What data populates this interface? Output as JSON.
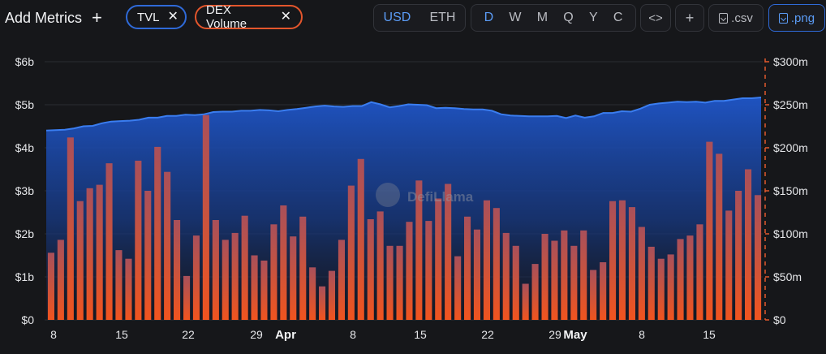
{
  "toolbar": {
    "add_metrics": "Add Metrics",
    "add_metrics_plus": "+",
    "metric_pills": [
      "TVL",
      "DEX Volume"
    ],
    "currency": [
      "USD",
      "ETH"
    ],
    "currency_selected": "USD",
    "granularity": [
      "D",
      "W",
      "M",
      "Q",
      "Y",
      "C"
    ],
    "granularity_selected": "D",
    "embed_icon": "<>",
    "add_plus": "+",
    "csv_label": ".csv",
    "png_label": ".png"
  },
  "colors": {
    "tvl": "#2563e0",
    "dex_volume": "#e0582c",
    "background": "#16171a"
  },
  "chart_data": {
    "type": "bar",
    "watermark": "DefiLlama",
    "x_tick_labels": [
      "8",
      "15",
      "22",
      "29",
      "Apr",
      "8",
      "15",
      "22",
      "29",
      "May",
      "8",
      "15"
    ],
    "left_axis": {
      "ticks": [
        "$0",
        "$1b",
        "$2b",
        "$3b",
        "$4b",
        "$5b",
        "$6b"
      ],
      "range": [
        0,
        6000000000
      ]
    },
    "right_axis": {
      "ticks": [
        "$0",
        "$50m",
        "$100m",
        "$150m",
        "$200m",
        "$250m",
        "$300m"
      ],
      "range": [
        0,
        300000000
      ]
    },
    "grid": "horizontal",
    "series": [
      {
        "name": "TVL",
        "type": "area",
        "axis": "left",
        "values": [
          4.4,
          4.41,
          4.42,
          4.45,
          4.5,
          4.51,
          4.57,
          4.61,
          4.62,
          4.63,
          4.65,
          4.7,
          4.7,
          4.74,
          4.74,
          4.77,
          4.76,
          4.78,
          4.83,
          4.84,
          4.84,
          4.86,
          4.86,
          4.88,
          4.87,
          4.85,
          4.88,
          4.9,
          4.93,
          4.96,
          4.98,
          4.96,
          4.95,
          4.97,
          4.97,
          5.06,
          5.01,
          4.94,
          4.97,
          5.01,
          5.0,
          4.99,
          4.92,
          4.93,
          4.92,
          4.9,
          4.89,
          4.89,
          4.86,
          4.78,
          4.75,
          4.74,
          4.73,
          4.73,
          4.73,
          4.74,
          4.69,
          4.75,
          4.7,
          4.73,
          4.81,
          4.81,
          4.85,
          4.84,
          4.91,
          5.0,
          5.03,
          5.05,
          5.07,
          5.06,
          5.07,
          5.05,
          5.09,
          5.09,
          5.12,
          5.15,
          5.15,
          5.17
        ]
      },
      {
        "name": "DEX Volume",
        "type": "bar",
        "axis": "right",
        "values": [
          78,
          93,
          212,
          138,
          153,
          157,
          182,
          81,
          71,
          185,
          150,
          201,
          172,
          116,
          51,
          98,
          238,
          116,
          93,
          101,
          121,
          75,
          69,
          111,
          133,
          97,
          120,
          61,
          39,
          57,
          93,
          156,
          187,
          117,
          126,
          86,
          86,
          114,
          162,
          115,
          141,
          158,
          74,
          120,
          105,
          139,
          130,
          101,
          86,
          42,
          65,
          100,
          92,
          104,
          86,
          104,
          58,
          67,
          138,
          139,
          131,
          108,
          85,
          71,
          76,
          94,
          98,
          111,
          207,
          193,
          127,
          150,
          175,
          145
        ]
      }
    ]
  }
}
